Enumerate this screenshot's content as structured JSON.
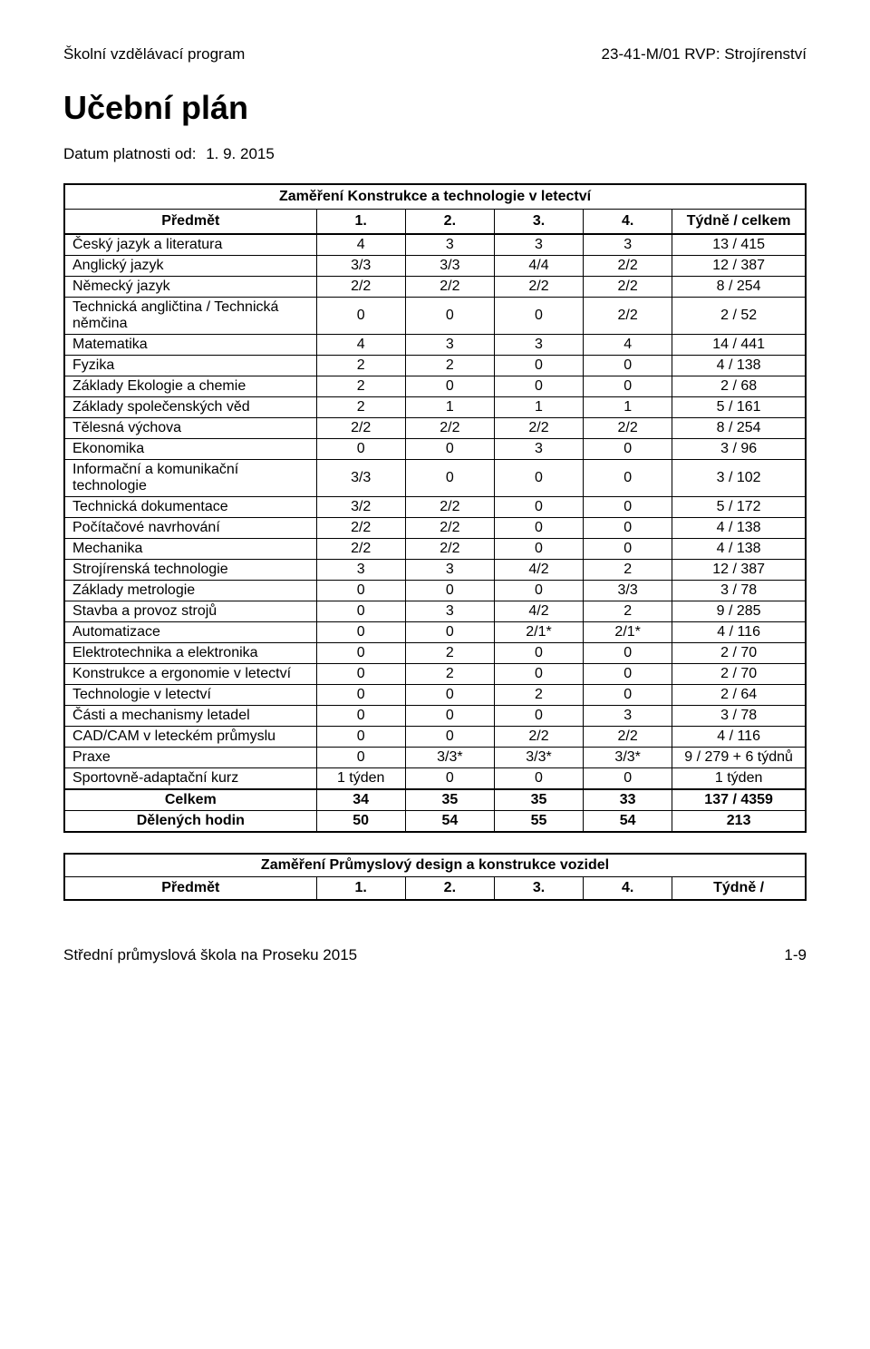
{
  "header": {
    "left": "Školní vzdělávací program",
    "right": "23-41-M/01 RVP: Strojírenství"
  },
  "title": "Učební plán",
  "validity_label": "Datum platnosti od:",
  "validity_value": "1. 9. 2015",
  "table1": {
    "caption": "Zaměření Konstrukce a technologie v letectví",
    "col_headers": {
      "subject": "Předmět",
      "c1": "1.",
      "c2": "2.",
      "c3": "3.",
      "c4": "4.",
      "total": "Týdně / celkem"
    },
    "rows": [
      {
        "name": "Český jazyk a literatura",
        "c1": "4",
        "c2": "3",
        "c3": "3",
        "c4": "3",
        "total": "13 / 415"
      },
      {
        "name": "Anglický jazyk",
        "c1": "3/3",
        "c2": "3/3",
        "c3": "4/4",
        "c4": "2/2",
        "total": "12 / 387"
      },
      {
        "name": "Německý jazyk",
        "c1": "2/2",
        "c2": "2/2",
        "c3": "2/2",
        "c4": "2/2",
        "total": "8 / 254"
      },
      {
        "name": "Technická angličtina / Technická němčina",
        "c1": "0",
        "c2": "0",
        "c3": "0",
        "c4": "2/2",
        "total": "2 / 52"
      },
      {
        "name": "Matematika",
        "c1": "4",
        "c2": "3",
        "c3": "3",
        "c4": "4",
        "total": "14 / 441"
      },
      {
        "name": "Fyzika",
        "c1": "2",
        "c2": "2",
        "c3": "0",
        "c4": "0",
        "total": "4 / 138"
      },
      {
        "name": "Základy Ekologie a chemie",
        "c1": "2",
        "c2": "0",
        "c3": "0",
        "c4": "0",
        "total": "2 / 68"
      },
      {
        "name": "Základy společenských věd",
        "c1": "2",
        "c2": "1",
        "c3": "1",
        "c4": "1",
        "total": "5 / 161"
      },
      {
        "name": "Tělesná výchova",
        "c1": "2/2",
        "c2": "2/2",
        "c3": "2/2",
        "c4": "2/2",
        "total": "8 / 254"
      },
      {
        "name": "Ekonomika",
        "c1": "0",
        "c2": "0",
        "c3": "3",
        "c4": "0",
        "total": "3 / 96"
      },
      {
        "name": "Informační a komunikační technologie",
        "c1": "3/3",
        "c2": "0",
        "c3": "0",
        "c4": "0",
        "total": "3 / 102"
      },
      {
        "name": "Technická dokumentace",
        "c1": "3/2",
        "c2": "2/2",
        "c3": "0",
        "c4": "0",
        "total": "5 / 172"
      },
      {
        "name": "Počítačové navrhování",
        "c1": "2/2",
        "c2": "2/2",
        "c3": "0",
        "c4": "0",
        "total": "4 / 138"
      },
      {
        "name": "Mechanika",
        "c1": "2/2",
        "c2": "2/2",
        "c3": "0",
        "c4": "0",
        "total": "4 / 138"
      },
      {
        "name": "Strojírenská technologie",
        "c1": "3",
        "c2": "3",
        "c3": "4/2",
        "c4": "2",
        "total": "12 / 387"
      },
      {
        "name": "Základy metrologie",
        "c1": "0",
        "c2": "0",
        "c3": "0",
        "c4": "3/3",
        "total": "3 / 78"
      },
      {
        "name": "Stavba a provoz strojů",
        "c1": "0",
        "c2": "3",
        "c3": "4/2",
        "c4": "2",
        "total": "9 / 285"
      },
      {
        "name": "Automatizace",
        "c1": "0",
        "c2": "0",
        "c3": "2/1*",
        "c4": "2/1*",
        "total": "4 / 116"
      },
      {
        "name": "Elektrotechnika a elektronika",
        "c1": "0",
        "c2": "2",
        "c3": "0",
        "c4": "0",
        "total": "2 / 70"
      },
      {
        "name": "Konstrukce a ergonomie v letectví",
        "c1": "0",
        "c2": "2",
        "c3": "0",
        "c4": "0",
        "total": "2 / 70"
      },
      {
        "name": "Technologie v letectví",
        "c1": "0",
        "c2": "0",
        "c3": "2",
        "c4": "0",
        "total": "2 / 64"
      },
      {
        "name": "Části a mechanismy letadel",
        "c1": "0",
        "c2": "0",
        "c3": "0",
        "c4": "3",
        "total": "3 / 78"
      },
      {
        "name": "CAD/CAM v leteckém průmyslu",
        "c1": "0",
        "c2": "0",
        "c3": "2/2",
        "c4": "2/2",
        "total": "4 / 116"
      },
      {
        "name": "Praxe",
        "c1": "0",
        "c2": "3/3*",
        "c3": "3/3*",
        "c4": "3/3*",
        "total": "9 / 279 + 6 týdnů"
      },
      {
        "name": "Sportovně-adaptační kurz",
        "c1": "1 týden",
        "c2": "0",
        "c3": "0",
        "c4": "0",
        "total": "1 týden"
      }
    ],
    "summary": [
      {
        "name": "Celkem",
        "c1": "34",
        "c2": "35",
        "c3": "35",
        "c4": "33",
        "total": "137 /  4359"
      },
      {
        "name": "Dělených hodin",
        "c1": "50",
        "c2": "54",
        "c3": "55",
        "c4": "54",
        "total": "213"
      }
    ]
  },
  "table2": {
    "caption": "Zaměření Průmyslový design a konstrukce vozidel",
    "col_headers": {
      "subject": "Předmět",
      "c1": "1.",
      "c2": "2.",
      "c3": "3.",
      "c4": "4.",
      "total": "Týdně /"
    }
  },
  "footer": {
    "left": "Střední průmyslová škola na Proseku 2015",
    "right": "1-9"
  }
}
